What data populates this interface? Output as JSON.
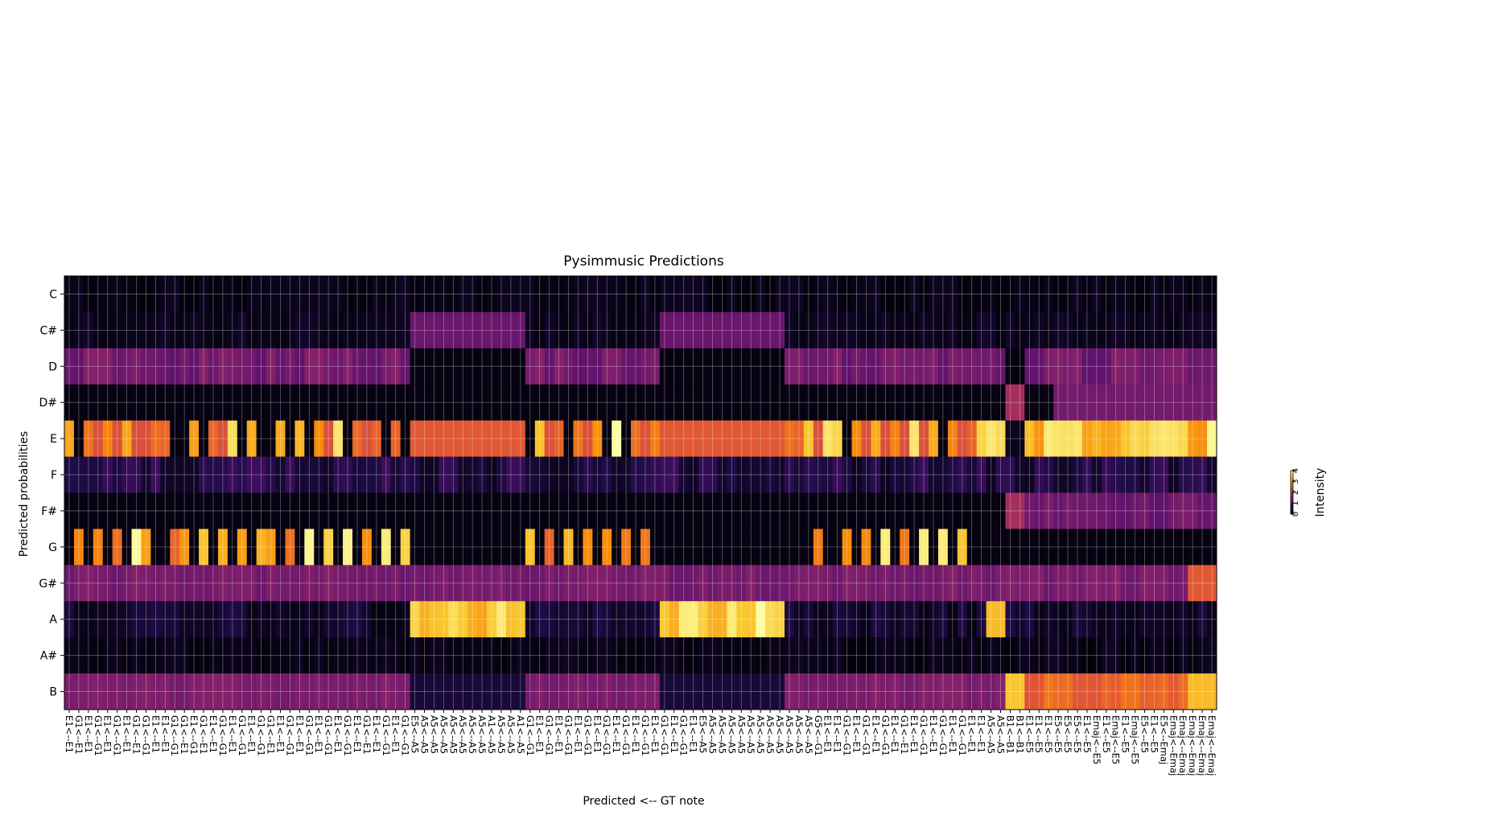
{
  "chart_data": {
    "type": "heatmap",
    "title": "Pysimmusic Predictions",
    "xlabel": "Predicted <-- GT note",
    "ylabel": "Predicted probabilities",
    "rows": [
      "C",
      "C#",
      "D",
      "D#",
      "E",
      "F",
      "F#",
      "G",
      "G#",
      "A",
      "A#",
      "B"
    ],
    "columns": [
      "E1<--E1",
      "G1<--E1",
      "E1<--E1",
      "G1<--G1",
      "E1<--E1",
      "G1<--G1",
      "E1<--E1",
      "G1<--E1",
      "G1<--G1",
      "E1<--E1",
      "E1<--E1",
      "G1<--G1",
      "G1<--E1",
      "E1<--G1",
      "G1<--E1",
      "E1<--E1",
      "G1<--G1",
      "E1<--E1",
      "G1<--G1",
      "E1<--E1",
      "G1<--G1",
      "G1<--E1",
      "E1<--E1",
      "G1<--G1",
      "E1<--E1",
      "G1<--G1",
      "E1<--E1",
      "G1<--G1",
      "E1<--E1",
      "G1<--G1",
      "E1<--E1",
      "G1<--E1",
      "E1<--E1",
      "G1<--G1",
      "E1<--E1",
      "G1<--G1",
      "E5<--A5",
      "A5<--A5",
      "A5<--A5",
      "A5<--A5",
      "A5<--A5",
      "A5<--A5",
      "A5<--A5",
      "A5<--A5",
      "A1<--A5",
      "A5<--A5",
      "A5<--A5",
      "A1<--A5",
      "G1<--G1",
      "E1<--E1",
      "G1<--G1",
      "E1<--E1",
      "G1<--G1",
      "E1<--E1",
      "G1<--G1",
      "E1<--E1",
      "G1<--G1",
      "E1<--E1",
      "G1<--G1",
      "E1<--E1",
      "G1<--G1",
      "E1<--E1",
      "G1<--G1",
      "E1<--E1",
      "G1<--G1",
      "E1<--E1",
      "E5<--A5",
      "A5<--A5",
      "A5<--A5",
      "A5<--A5",
      "A5<--A5",
      "A5<--A5",
      "A5<--A5",
      "A5<--A5",
      "A5<--A5",
      "A5<--A5",
      "A5<--A5",
      "A5<--A5",
      "G5<--G1",
      "E1<--E1",
      "E1<--E1",
      "G1<--G1",
      "E1<--E1",
      "G1<--G1",
      "E1<--E1",
      "G1<--G1",
      "E1<--E1",
      "G1<--E1",
      "E1<--E1",
      "G1<--G1",
      "E1<--E1",
      "G1<--G1",
      "E1<--E1",
      "G1<--G1",
      "E1<--E1",
      "E1<--E1",
      "A5<--A5",
      "A5<--A5",
      "B1<--B1",
      "B1<--B1",
      "E1<--E5",
      "E1<--E5",
      "E1<--E5",
      "E5<--E5",
      "E5<--E5",
      "E5<--E5",
      "E1<--E5",
      "Emaj<--E5",
      "E1<--E5",
      "Emaj<--E5",
      "E1<--E5",
      "Emaj<--E5",
      "E5<--E5",
      "E1<--E5",
      "E5<--Emaj",
      "Emaj<--Emaj",
      "Emaj<--Emaj",
      "Emaj<--Emaj",
      "Emaj<--Emaj",
      "Emaj<--Emaj"
    ],
    "value_range": [
      0,
      4
    ],
    "colormap": "inferno",
    "colorbar_label": "Intensity",
    "colorbar_ticks": [
      "0",
      "1",
      "2",
      "3",
      "4"
    ],
    "grid": true,
    "description_of_values": {
      "C": "near 0 everywhere (0.0-0.3)",
      "C#": "about 1.2 in A5<--A5 columns 36-47 and 62-74, else near 0",
      "D": "about 1.3 in E1/G1 columns 0-35 and 48-61, 75-96, 103-123; near 0 in A5 and B1 blocks",
      "D#": "about 1.3 in columns 103-124, 1.8 at B1 columns, else near 0",
      "E": "2.6-4 peaks in E1 columns, ~2.5 in A5 columns, ~3.2-4 in E5/Emaj columns 100-123",
      "F": "0.3-0.8 low values",
      "F#": "about 1.2 in E5/Emaj columns 100-123, 1.8 at B1 columns",
      "G": "2.6-4 peaks in G1 columns, near 0 in A5 and E5 blocks",
      "G#": "about 1.3 in most columns, 2.4-2.7 in Emaj columns 117-123",
      "A": "3.2-4 in A5 columns 36-47 and 62-74, near 0 elsewhere",
      "A#": "near 0 everywhere",
      "B": "about 1.3 in E1/G1 columns, 3.3-3.6 in B1 and Emaj columns, 2.3-2.7 in E5 columns"
    }
  }
}
